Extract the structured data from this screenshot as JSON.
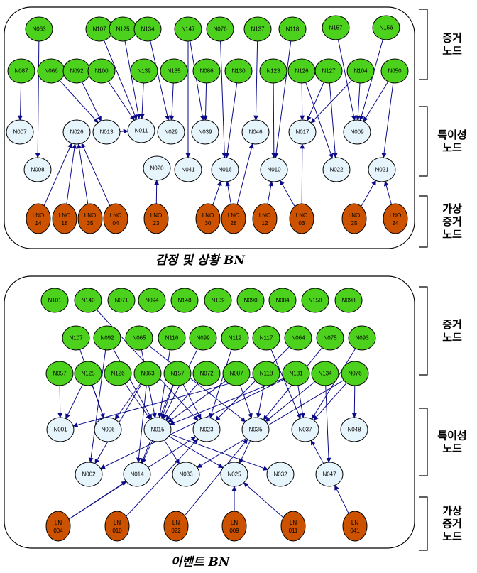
{
  "colors": {
    "evidence": "#4cd11c",
    "special": "#e6f4fb",
    "virtual": "#cc5200",
    "edge": "#0a0a8a",
    "stroke": "#000000"
  },
  "emotion": {
    "title": "감정 및 상황 BN",
    "bracket_labels": [
      [
        "증거",
        "노드"
      ],
      [
        "특이성",
        "노드"
      ],
      [
        "가상",
        "증거",
        "노드"
      ]
    ],
    "evidence_nodes": [
      "N063",
      "N107",
      "N125",
      "N134",
      "N147",
      "N076",
      "N137",
      "N118",
      "N157",
      "N156",
      "N087",
      "N066",
      "N092",
      "N100",
      "N139",
      "N135",
      "N086",
      "N130",
      "N123",
      "N126",
      "N127",
      "N104",
      "N050"
    ],
    "special_nodes": [
      "N007",
      "N026",
      "N013",
      "N011",
      "N029",
      "N039",
      "N046",
      "N017",
      "N009",
      "N008",
      "N020",
      "N041",
      "N016",
      "N010",
      "N022",
      "N021"
    ],
    "virtual_nodes": [
      [
        "LNO",
        "14"
      ],
      [
        "LNO",
        "18"
      ],
      [
        "LNO",
        "35"
      ],
      [
        "LNO",
        "04"
      ],
      [
        "LNO",
        "23"
      ],
      [
        "LNO",
        "30"
      ],
      [
        "LNO",
        "28"
      ],
      [
        "LNO",
        "12"
      ],
      [
        "LNO",
        "03"
      ],
      [
        "LNO",
        "25"
      ],
      [
        "LNO",
        "24"
      ]
    ]
  },
  "event": {
    "title": "이벤트 BN",
    "bracket_labels": [
      [
        "증거",
        "노드"
      ],
      [
        "특이성",
        "노드"
      ],
      [
        "가상",
        "증거",
        "노드"
      ]
    ],
    "evidence_nodes": [
      "N101",
      "N140",
      "N071",
      "N094",
      "N148",
      "N109",
      "N090",
      "N084",
      "N158",
      "N098",
      "N107",
      "N092",
      "N065",
      "N116",
      "N099",
      "N112",
      "N117",
      "N064",
      "N075",
      "N093",
      "N057",
      "N125",
      "N126",
      "N063",
      "N157",
      "N072",
      "N087",
      "N118",
      "N131",
      "N134",
      "N076"
    ],
    "special_nodes": [
      "N001",
      "N006",
      "N015",
      "N023",
      "N035",
      "N037",
      "N048",
      "N002",
      "N014",
      "N033",
      "N025",
      "N032",
      "N047"
    ],
    "virtual_nodes": [
      [
        "LN",
        "004"
      ],
      [
        "LN",
        "010"
      ],
      [
        "LN",
        "022"
      ],
      [
        "LN",
        "009"
      ],
      [
        "LN",
        "011"
      ],
      [
        "LN",
        "041"
      ]
    ]
  }
}
